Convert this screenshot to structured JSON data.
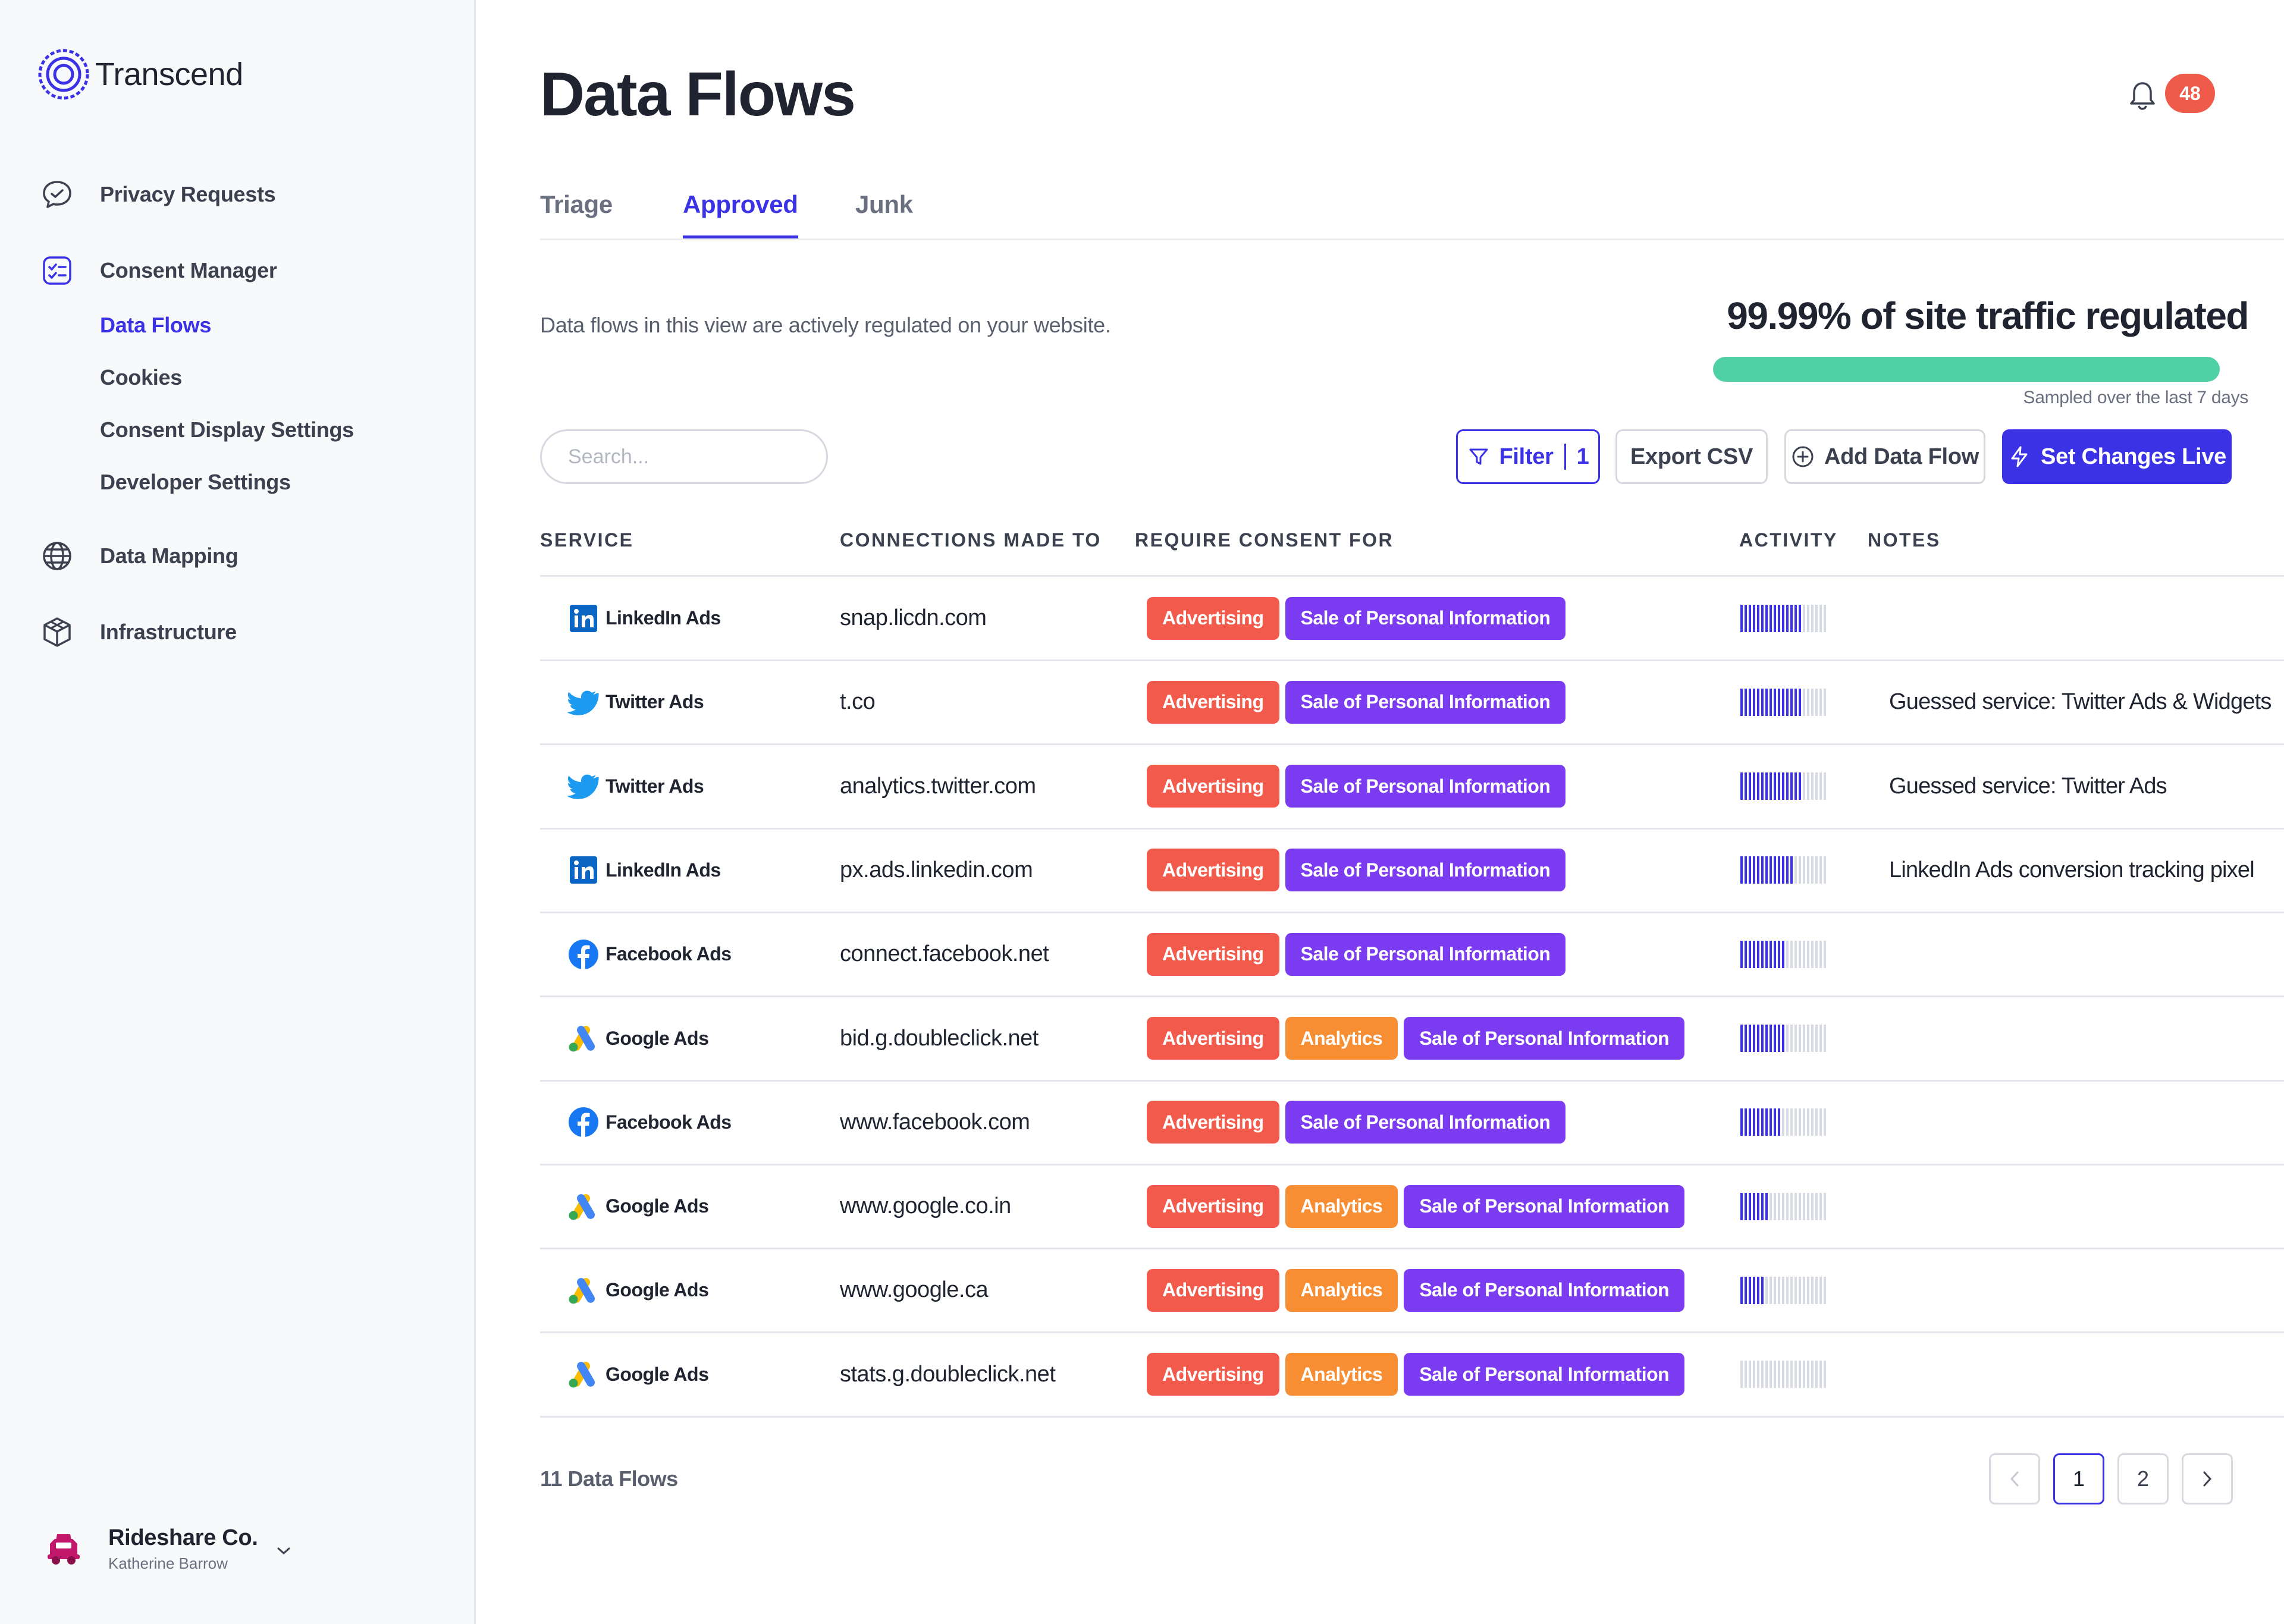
{
  "app": {
    "name": "Transcend"
  },
  "sidebar": {
    "items": [
      {
        "label": "Privacy Requests",
        "icon": "chat-bubble-icon"
      },
      {
        "label": "Consent Manager",
        "icon": "consent-icon"
      },
      {
        "label": "Data Mapping",
        "icon": "globe-icon"
      },
      {
        "label": "Infrastructure",
        "icon": "cube-icon"
      }
    ],
    "consent_sub": [
      {
        "label": "Data Flows",
        "active": true
      },
      {
        "label": "Cookies",
        "active": false
      },
      {
        "label": "Consent Display Settings",
        "active": false
      },
      {
        "label": "Developer Settings",
        "active": false
      }
    ],
    "org": {
      "name": "Rideshare Co.",
      "user": "Katherine Barrow"
    }
  },
  "header": {
    "title": "Data Flows",
    "notifications": "48"
  },
  "tabs": [
    {
      "label": "Triage",
      "active": false
    },
    {
      "label": "Approved",
      "active": true
    },
    {
      "label": "Junk",
      "active": false
    }
  ],
  "summary": {
    "description": "Data flows in this view are actively regulated on your website.",
    "traffic_label": "99.99% of site traffic regulated",
    "traffic_value": 0.9999,
    "sample_note": "Sampled over the last 7 days"
  },
  "toolbar": {
    "search_placeholder": "Search...",
    "filter_label": "Filter",
    "filter_count": "1",
    "export_label": "Export CSV",
    "add_label": "Add Data Flow",
    "live_label": "Set Changes Live"
  },
  "table": {
    "headers": [
      "SERVICE",
      "CONNECTIONS MADE TO",
      "REQUIRE CONSENT FOR",
      "ACTIVITY",
      "NOTES"
    ],
    "rows": [
      {
        "service": "LinkedIn Ads",
        "icon": "linkedin-icon",
        "connection": "snap.licdn.com",
        "purposes": [
          "Advertising",
          "Sale of Personal Information"
        ],
        "activity": 15,
        "note": ""
      },
      {
        "service": "Twitter Ads",
        "icon": "twitter-icon",
        "connection": "t.co",
        "purposes": [
          "Advertising",
          "Sale of Personal Information"
        ],
        "activity": 15,
        "note": "Guessed service: Twitter Ads & Widgets"
      },
      {
        "service": "Twitter Ads",
        "icon": "twitter-icon",
        "connection": "analytics.twitter.com",
        "purposes": [
          "Advertising",
          "Sale of Personal Information"
        ],
        "activity": 15,
        "note": "Guessed service: Twitter Ads"
      },
      {
        "service": "LinkedIn Ads",
        "icon": "linkedin-icon",
        "connection": "px.ads.linkedin.com",
        "purposes": [
          "Advertising",
          "Sale of Personal Information"
        ],
        "activity": 13,
        "note": "LinkedIn Ads conversion tracking pixel"
      },
      {
        "service": "Facebook Ads",
        "icon": "facebook-icon",
        "connection": "connect.facebook.net",
        "purposes": [
          "Advertising",
          "Sale of Personal Information"
        ],
        "activity": 11,
        "note": ""
      },
      {
        "service": "Google Ads",
        "icon": "google-ads-icon",
        "connection": "bid.g.doubleclick.net",
        "purposes": [
          "Advertising",
          "Analytics",
          "Sale of Personal Information"
        ],
        "activity": 11,
        "note": ""
      },
      {
        "service": "Facebook Ads",
        "icon": "facebook-icon",
        "connection": "www.facebook.com",
        "purposes": [
          "Advertising",
          "Sale of Personal Information"
        ],
        "activity": 10,
        "note": ""
      },
      {
        "service": "Google Ads",
        "icon": "google-ads-icon",
        "connection": "www.google.co.in",
        "purposes": [
          "Advertising",
          "Analytics",
          "Sale of Personal Information"
        ],
        "activity": 7,
        "note": ""
      },
      {
        "service": "Google Ads",
        "icon": "google-ads-icon",
        "connection": "www.google.ca",
        "purposes": [
          "Advertising",
          "Analytics",
          "Sale of Personal Information"
        ],
        "activity": 6,
        "note": ""
      },
      {
        "service": "Google Ads",
        "icon": "google-ads-icon",
        "connection": "stats.g.doubleclick.net",
        "purposes": [
          "Advertising",
          "Analytics",
          "Sale of Personal Information"
        ],
        "activity": 0,
        "note": ""
      }
    ],
    "activity_max": 21
  },
  "footer": {
    "count_label": "11 Data Flows",
    "pages": [
      "1",
      "2"
    ],
    "current_page": "1"
  },
  "colors": {
    "accent": "#3b32e6",
    "advertising": "#f25a4c",
    "analytics": "#f78e34",
    "sale": "#7b3bf0",
    "traffic": "#4fd1a5",
    "badge": "#ef5a4a"
  }
}
